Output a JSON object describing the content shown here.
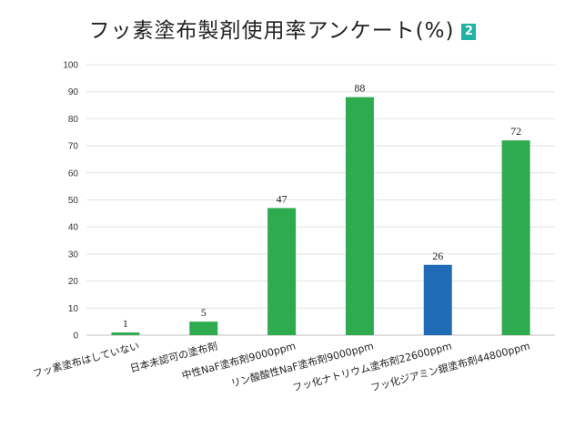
{
  "chart_data": {
    "type": "bar",
    "title": "フッ素塗布製剤使用率アンケート(%)",
    "badge": "2",
    "ylim": [
      0,
      100
    ],
    "yticks": [
      0,
      10,
      20,
      30,
      40,
      50,
      60,
      70,
      80,
      90,
      100
    ],
    "grid": true,
    "categories": [
      "フッ素塗布はしていない",
      "日本未認可の塗布剤",
      "中性NaF塗布剤9000ppm",
      "リン酸酸性NaF塗布剤9000ppm",
      "フッ化ナトリウム塗布剤22600ppm",
      "フッ化ジアミン銀塗布剤44800ppm"
    ],
    "values": [
      1,
      5,
      47,
      88,
      26,
      72
    ],
    "data_labels": [
      "1",
      "5",
      "47",
      "88",
      "26",
      "72"
    ],
    "colors": [
      "#2eaa4f",
      "#2eaa4f",
      "#2eaa4f",
      "#2eaa4f",
      "#1f6bb5",
      "#2eaa4f"
    ]
  }
}
